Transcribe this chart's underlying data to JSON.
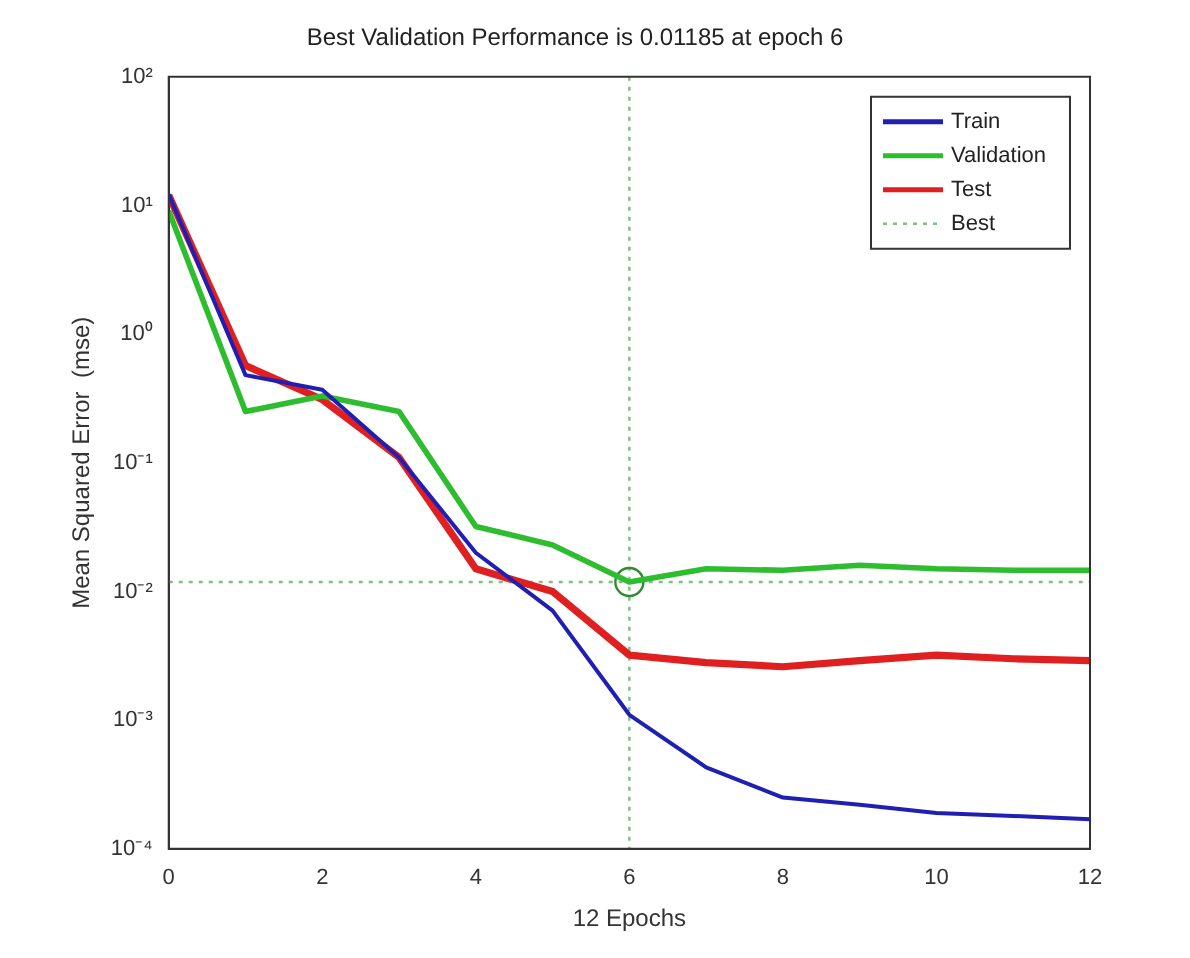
{
  "chart_data": {
    "type": "line",
    "title": "Best Validation Performance is 0.01185 at epoch 6",
    "xlabel": "12 Epochs",
    "ylabel": "Mean Squared Error  (mse)",
    "x": [
      0,
      1,
      2,
      3,
      4,
      5,
      6,
      7,
      8,
      9,
      10,
      11,
      12
    ],
    "series": [
      {
        "name": "Train",
        "color": "#1f1fb4",
        "values": [
          12.2,
          0.48,
          0.37,
          0.11,
          0.02,
          0.0071,
          0.0011,
          0.00043,
          0.00025,
          0.00022,
          0.00019,
          0.00018,
          0.00017
        ]
      },
      {
        "name": "Validation",
        "color": "#2ebd2e",
        "values": [
          9.1,
          0.25,
          0.33,
          0.25,
          0.032,
          0.023,
          0.01185,
          0.015,
          0.0146,
          0.016,
          0.015,
          0.0146,
          0.0146
        ]
      },
      {
        "name": "Test",
        "color": "#e02020",
        "values": [
          12,
          0.57,
          0.31,
          0.11,
          0.015,
          0.01,
          0.0032,
          0.0028,
          0.0026,
          0.0029,
          0.0032,
          0.003,
          0.0029
        ]
      },
      {
        "type": "scatter",
        "marker": "circle",
        "color": "#2e8b2e",
        "x": [
          6
        ],
        "values": [
          0.01185
        ]
      }
    ],
    "ref_lines": [
      {
        "axis": "x",
        "value": 6,
        "color": "#7fbf7f",
        "line_style": "dotted"
      },
      {
        "axis": "y",
        "value": 0.01185,
        "label": "Best",
        "color": "#7fbf7f",
        "line_style": "dotted"
      }
    ],
    "xlim": [
      0,
      12
    ],
    "xticks": [
      0,
      2,
      4,
      6,
      8,
      10,
      12
    ],
    "ylim": [
      0.0001,
      100
    ],
    "yticks": [
      {
        "value": 0.0001,
        "label": "10⁻⁴"
      },
      {
        "value": 0.001,
        "label": "10⁻³"
      },
      {
        "value": 0.01,
        "label": "10⁻²"
      },
      {
        "value": 0.1,
        "label": "10⁻¹"
      },
      {
        "value": 1,
        "label": "10⁰"
      },
      {
        "value": 10,
        "label": "10¹"
      },
      {
        "value": 100,
        "label": "10²"
      }
    ],
    "log": "y",
    "marker": "none",
    "legend": "top right"
  }
}
